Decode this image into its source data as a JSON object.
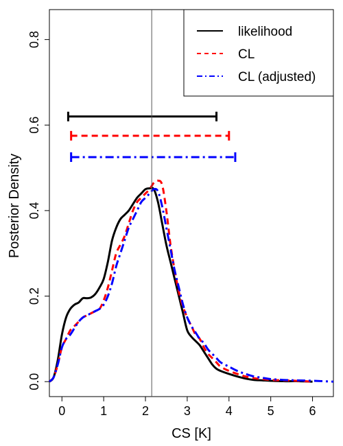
{
  "chart_data": {
    "type": "line",
    "xlabel": "CS [K]",
    "ylabel": "Posterior Density",
    "xlim": [
      -0.3,
      6.5
    ],
    "ylim": [
      -0.035,
      0.87
    ],
    "xticks": [
      0,
      1,
      2,
      3,
      4,
      5,
      6
    ],
    "yticks": [
      0.0,
      0.2,
      0.4,
      0.6,
      0.8
    ],
    "xtick_labels": [
      "0",
      "1",
      "2",
      "3",
      "4",
      "5",
      "6"
    ],
    "ytick_labels": [
      "0.0",
      "0.2",
      "0.4",
      "0.6",
      "0.8"
    ],
    "vline": 2.15,
    "legend_position": "top-right",
    "series": [
      {
        "name": "likelihood",
        "color": "#000000",
        "dash": "solid",
        "interval": [
          0.15,
          3.7
        ],
        "interval_y": 0.62,
        "x": [
          -0.3,
          -0.2,
          -0.1,
          0.0,
          0.1,
          0.2,
          0.3,
          0.4,
          0.5,
          0.6,
          0.7,
          0.8,
          0.9,
          1.0,
          1.1,
          1.2,
          1.3,
          1.4,
          1.5,
          1.6,
          1.7,
          1.8,
          1.9,
          2.0,
          2.1,
          2.2,
          2.3,
          2.4,
          2.5,
          2.6,
          2.7,
          2.8,
          2.9,
          3.0,
          3.1,
          3.2,
          3.3,
          3.4,
          3.5,
          3.6,
          3.7,
          3.8,
          4.0,
          4.2,
          4.4,
          4.6,
          4.8,
          5.0,
          5.3,
          5.6,
          6.0
        ],
        "y": [
          0.0,
          0.01,
          0.05,
          0.11,
          0.15,
          0.17,
          0.18,
          0.185,
          0.195,
          0.195,
          0.197,
          0.205,
          0.22,
          0.24,
          0.28,
          0.33,
          0.36,
          0.38,
          0.39,
          0.4,
          0.415,
          0.43,
          0.44,
          0.45,
          0.452,
          0.45,
          0.42,
          0.37,
          0.32,
          0.28,
          0.24,
          0.2,
          0.16,
          0.12,
          0.105,
          0.095,
          0.085,
          0.07,
          0.055,
          0.04,
          0.03,
          0.025,
          0.018,
          0.012,
          0.007,
          0.004,
          0.003,
          0.002,
          0.001,
          0.001,
          0.0
        ]
      },
      {
        "name": "CL",
        "color": "#ff0000",
        "dash": "dashed",
        "interval": [
          0.22,
          4.0
        ],
        "interval_y": 0.575,
        "x": [
          -0.3,
          -0.2,
          -0.1,
          0.0,
          0.1,
          0.2,
          0.3,
          0.4,
          0.5,
          0.6,
          0.7,
          0.8,
          0.9,
          1.0,
          1.1,
          1.2,
          1.3,
          1.4,
          1.5,
          1.6,
          1.7,
          1.8,
          1.9,
          2.0,
          2.1,
          2.2,
          2.3,
          2.4,
          2.5,
          2.6,
          2.7,
          2.8,
          2.9,
          3.0,
          3.1,
          3.2,
          3.3,
          3.4,
          3.5,
          3.6,
          3.7,
          3.8,
          4.0,
          4.2,
          4.4,
          4.6,
          4.8,
          5.0,
          5.3,
          5.6,
          6.0
        ],
        "y": [
          0.0,
          0.01,
          0.04,
          0.08,
          0.1,
          0.12,
          0.13,
          0.14,
          0.15,
          0.155,
          0.16,
          0.165,
          0.17,
          0.19,
          0.22,
          0.26,
          0.3,
          0.32,
          0.34,
          0.37,
          0.4,
          0.42,
          0.43,
          0.44,
          0.45,
          0.465,
          0.47,
          0.46,
          0.4,
          0.32,
          0.26,
          0.21,
          0.175,
          0.15,
          0.13,
          0.11,
          0.1,
          0.08,
          0.065,
          0.055,
          0.045,
          0.035,
          0.025,
          0.018,
          0.012,
          0.008,
          0.006,
          0.004,
          0.003,
          0.002,
          0.0
        ]
      },
      {
        "name": "CL (adjusted)",
        "color": "#0000ff",
        "dash": "dashdot",
        "interval": [
          0.22,
          4.15
        ],
        "interval_y": 0.525,
        "x": [
          -0.3,
          -0.2,
          -0.1,
          0.0,
          0.1,
          0.2,
          0.3,
          0.4,
          0.5,
          0.6,
          0.7,
          0.8,
          0.9,
          1.0,
          1.1,
          1.2,
          1.3,
          1.4,
          1.5,
          1.6,
          1.7,
          1.8,
          1.9,
          2.0,
          2.1,
          2.2,
          2.3,
          2.4,
          2.5,
          2.6,
          2.7,
          2.8,
          2.9,
          3.0,
          3.1,
          3.2,
          3.3,
          3.4,
          3.5,
          3.6,
          3.7,
          3.8,
          4.0,
          4.2,
          4.4,
          4.6,
          4.8,
          5.0,
          5.3,
          5.6,
          6.0,
          6.5
        ],
        "y": [
          0.0,
          0.01,
          0.04,
          0.08,
          0.1,
          0.11,
          0.125,
          0.14,
          0.15,
          0.155,
          0.16,
          0.165,
          0.17,
          0.18,
          0.2,
          0.23,
          0.27,
          0.3,
          0.33,
          0.36,
          0.38,
          0.4,
          0.42,
          0.43,
          0.44,
          0.45,
          0.445,
          0.41,
          0.36,
          0.31,
          0.26,
          0.22,
          0.18,
          0.15,
          0.13,
          0.115,
          0.1,
          0.09,
          0.075,
          0.065,
          0.055,
          0.045,
          0.035,
          0.025,
          0.018,
          0.012,
          0.009,
          0.006,
          0.004,
          0.003,
          0.002,
          0.0
        ]
      }
    ]
  }
}
